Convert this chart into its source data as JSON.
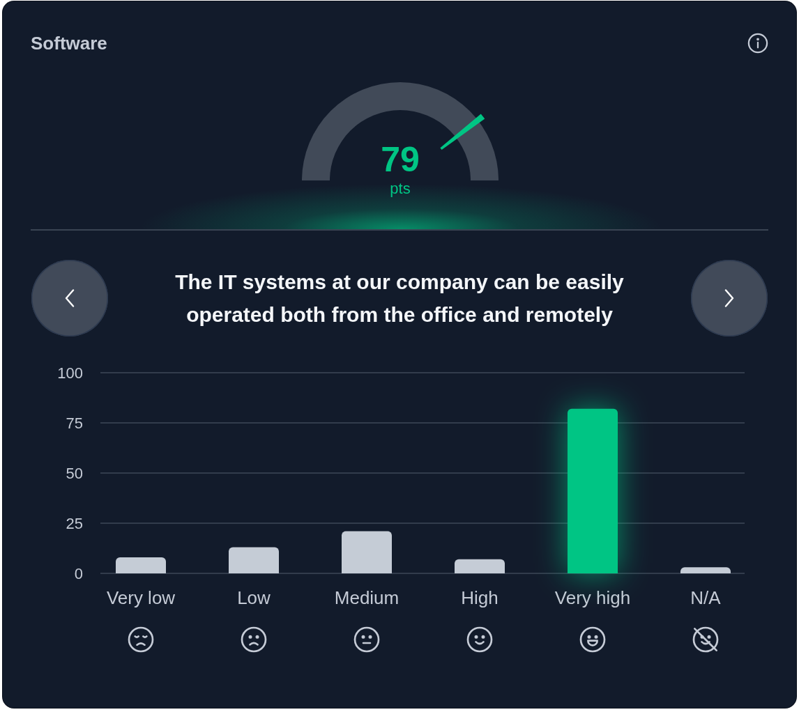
{
  "chart_data": [
    {
      "type": "other",
      "title": "Software",
      "values": [
        79
      ],
      "data_labels": true,
      "annotations": [
        "pts"
      ],
      "color": "#00c584"
    },
    {
      "type": "bar",
      "title": "The IT systems at our company can be easily operated both from the office and remotely",
      "categories": [
        "Very low",
        "Low",
        "Medium",
        "High",
        "Very high",
        "N/A"
      ],
      "values": [
        8,
        13,
        21,
        7,
        82,
        3
      ],
      "colors": [
        "#c5ccd6",
        "#c5ccd6",
        "#c5ccd6",
        "#c5ccd6",
        "#00c584",
        "#c5ccd6"
      ],
      "ylim": [
        0,
        100
      ],
      "yticks": [
        0,
        25,
        50,
        75,
        100
      ],
      "grid": "y"
    }
  ]
}
